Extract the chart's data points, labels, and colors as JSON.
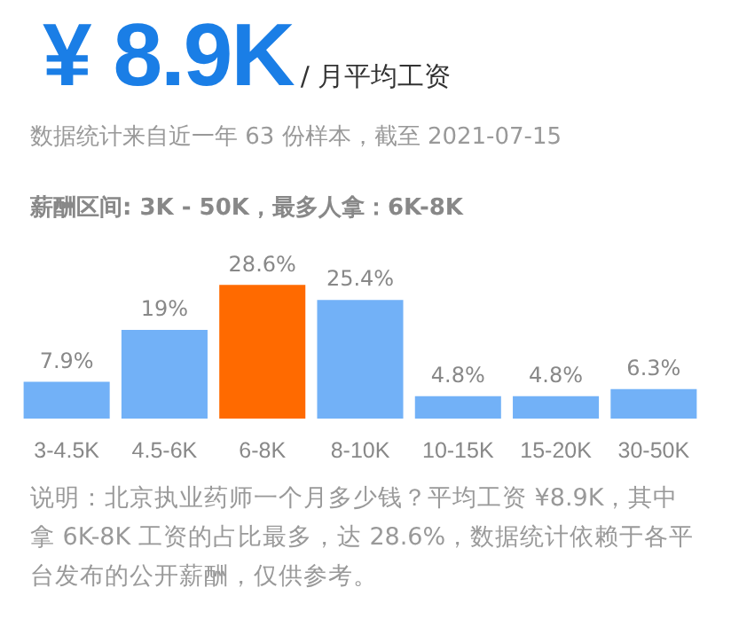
{
  "chart_data": {
    "type": "bar",
    "title": "¥ 8.9K",
    "subtitle": "/ 月平均工资",
    "annotations": [
      "数据统计来自近一年 63 份样本，截至 2021-07-15",
      "薪酬区间: 3K - 50K，最多人拿：6K-8K",
      "说明：北京执业药师一个月多少钱？平均工资 ¥8.9K，其中拿 6K-8K 工资的占比最多，达 28.6%，数据统计依赖于各平台发布的公开薪酬，仅供参考。"
    ],
    "categories": [
      "3-4.5K",
      "4.5-6K",
      "6-8K",
      "8-10K",
      "10-15K",
      "15-20K",
      "30-50K"
    ],
    "values": [
      7.9,
      19,
      28.6,
      25.4,
      4.8,
      4.8,
      6.3
    ],
    "value_labels": [
      "7.9%",
      "19%",
      "28.6%",
      "25.4%",
      "4.8%",
      "4.8%",
      "6.3%"
    ],
    "colors": [
      "#72b1f7",
      "#72b1f7",
      "#ff6a00",
      "#72b1f7",
      "#72b1f7",
      "#72b1f7",
      "#72b1f7"
    ],
    "grid": false,
    "legend": false,
    "tick_labels": "x"
  }
}
